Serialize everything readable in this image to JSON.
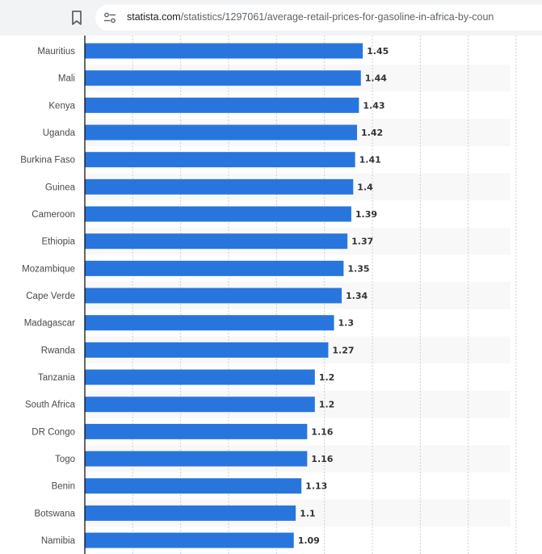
{
  "browser": {
    "url_domain": "statista.com",
    "url_path": "/statistics/1297061/average-retail-prices-for-gasoline-in-africa-by-coun",
    "icons": [
      "bookmark-icon",
      "site-settings-icon"
    ]
  },
  "chart_data": {
    "type": "bar",
    "orientation": "horizontal",
    "categories": [
      "Mauritius",
      "Mali",
      "Kenya",
      "Uganda",
      "Burkina Faso",
      "Guinea",
      "Cameroon",
      "Ethiopia",
      "Mozambique",
      "Cape Verde",
      "Madagascar",
      "Rwanda",
      "Tanzania",
      "South Africa",
      "DR Congo",
      "Togo",
      "Benin",
      "Botswana",
      "Namibia"
    ],
    "values": [
      1.45,
      1.44,
      1.43,
      1.42,
      1.41,
      1.4,
      1.39,
      1.37,
      1.35,
      1.34,
      1.3,
      1.27,
      1.2,
      1.2,
      1.16,
      1.16,
      1.13,
      1.1,
      1.09
    ],
    "value_labels": [
      "1.45",
      "1.44",
      "1.43",
      "1.42",
      "1.41",
      "1.4",
      "1.39",
      "1.37",
      "1.35",
      "1.34",
      "1.3",
      "1.27",
      "1.2",
      "1.2",
      "1.16",
      "1.16",
      "1.13",
      "1.1",
      "1.09"
    ],
    "xlim": [
      0,
      2.25
    ],
    "grid_step": 0.25,
    "grid": true,
    "bar_color": "#2876dd",
    "band_color": "#f8f8f8"
  }
}
